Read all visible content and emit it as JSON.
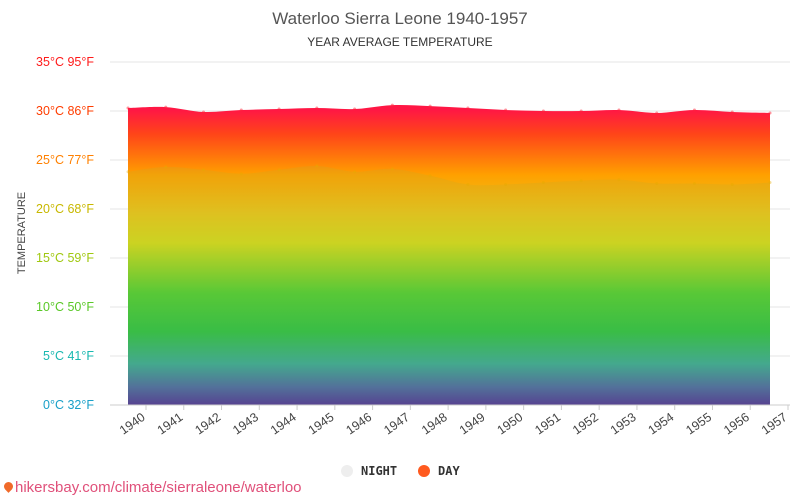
{
  "chart_data": {
    "type": "area",
    "title": "Waterloo Sierra Leone 1940-1957",
    "subtitle": "YEAR AVERAGE TEMPERATURE",
    "ylabel": "TEMPERATURE",
    "xlabel": "",
    "categories": [
      "1940",
      "1941",
      "1942",
      "1943",
      "1944",
      "1945",
      "1946",
      "1947",
      "1948",
      "1949",
      "1950",
      "1951",
      "1952",
      "1953",
      "1954",
      "1955",
      "1956",
      "1957"
    ],
    "y_ticks": [
      {
        "value": 0,
        "label": "0°C 32°F"
      },
      {
        "value": 5,
        "label": "5°C 41°F"
      },
      {
        "value": 10,
        "label": "10°C 50°F"
      },
      {
        "value": 15,
        "label": "15°C 59°F"
      },
      {
        "value": 20,
        "label": "20°C 68°F"
      },
      {
        "value": 25,
        "label": "25°C 77°F"
      },
      {
        "value": 30,
        "label": "30°C 86°F"
      },
      {
        "value": 35,
        "label": "35°C 95°F"
      }
    ],
    "ylim": [
      0,
      35
    ],
    "grid": true,
    "legend_position": "bottom-center",
    "series": [
      {
        "name": "NIGHT",
        "color": "#eeeeee",
        "values": [
          23.8,
          24.3,
          24.0,
          23.6,
          24.0,
          24.4,
          23.8,
          24.1,
          23.4,
          22.5,
          22.5,
          22.7,
          22.9,
          23.0,
          22.6,
          22.6,
          22.5,
          22.7
        ]
      },
      {
        "name": "DAY",
        "color": "#ff5a1f",
        "values": [
          30.3,
          30.4,
          29.9,
          30.1,
          30.2,
          30.3,
          30.2,
          30.6,
          30.5,
          30.3,
          30.1,
          30.0,
          30.0,
          30.1,
          29.8,
          30.1,
          29.9,
          29.8
        ]
      }
    ]
  },
  "source": "hikersbay.com/climate/sierraleone/waterloo"
}
